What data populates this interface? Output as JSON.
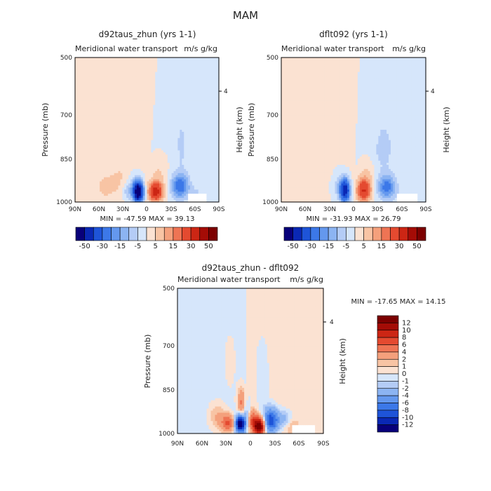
{
  "figure": {
    "title": "MAM",
    "colors": {
      "neg": [
        "#08007a",
        "#0a28b4",
        "#1e54d8",
        "#3c78e8",
        "#6498ee",
        "#8cb4f2",
        "#b4ccf6",
        "#d6e6fb"
      ],
      "pos": [
        "#fbe2d2",
        "#f8c4a4",
        "#f4a07c",
        "#ee7454",
        "#e44a30",
        "#cc2614",
        "#a40c06",
        "#7c0000"
      ]
    }
  },
  "chart_data": [
    {
      "id": "panel1",
      "type": "heatmap",
      "title": "d92taus_zhun (yrs 1-1)",
      "subtitle_left": "Meridional water transport",
      "subtitle_right": "m/s g/kg",
      "ylabel": "Pressure (mb)",
      "right_label": "Height (km)",
      "right_tick": "4",
      "yticks": [
        "500",
        "700",
        "850",
        "1000"
      ],
      "xticks": [
        "90N",
        "60N",
        "30N",
        "0",
        "30S",
        "60S",
        "90S"
      ],
      "stats": "MIN = -47.59   MAX =  39.13",
      "colorbar_labels": [
        "-50",
        "-30",
        "-15",
        "-5",
        "5",
        "15",
        "30",
        "50"
      ]
    },
    {
      "id": "panel2",
      "type": "heatmap",
      "title": "dflt092 (yrs 1-1)",
      "subtitle_left": "Meridional water transport",
      "subtitle_right": "m/s g/kg",
      "ylabel": "Pressure (mb)",
      "right_label": "Height (km)",
      "right_tick": "4",
      "yticks": [
        "500",
        "700",
        "850",
        "1000"
      ],
      "xticks": [
        "90N",
        "60N",
        "30N",
        "0",
        "30S",
        "60S",
        "90S"
      ],
      "stats": "MIN = -31.93   MAX =  26.79",
      "colorbar_labels": [
        "-50",
        "-30",
        "-15",
        "-5",
        "5",
        "15",
        "30",
        "50"
      ]
    },
    {
      "id": "panel3",
      "type": "heatmap",
      "title": "d92taus_zhun - dflt092",
      "subtitle_left": "Meridional water transport",
      "subtitle_right": "m/s g/kg",
      "ylabel": "Pressure (mb)",
      "right_label": "Height (km)",
      "right_tick": "4",
      "yticks": [
        "500",
        "700",
        "850",
        "1000"
      ],
      "xticks": [
        "90N",
        "60N",
        "30N",
        "0",
        "30S",
        "60S",
        "90S"
      ],
      "stats": "MIN = -17.65   MAX =  14.15",
      "colorbar_labels": [
        "12",
        "10",
        "8",
        "6",
        "4",
        "2",
        "1",
        "0",
        "-1",
        "-2",
        "-4",
        "-6",
        "-8",
        "-10",
        "-12"
      ]
    }
  ]
}
